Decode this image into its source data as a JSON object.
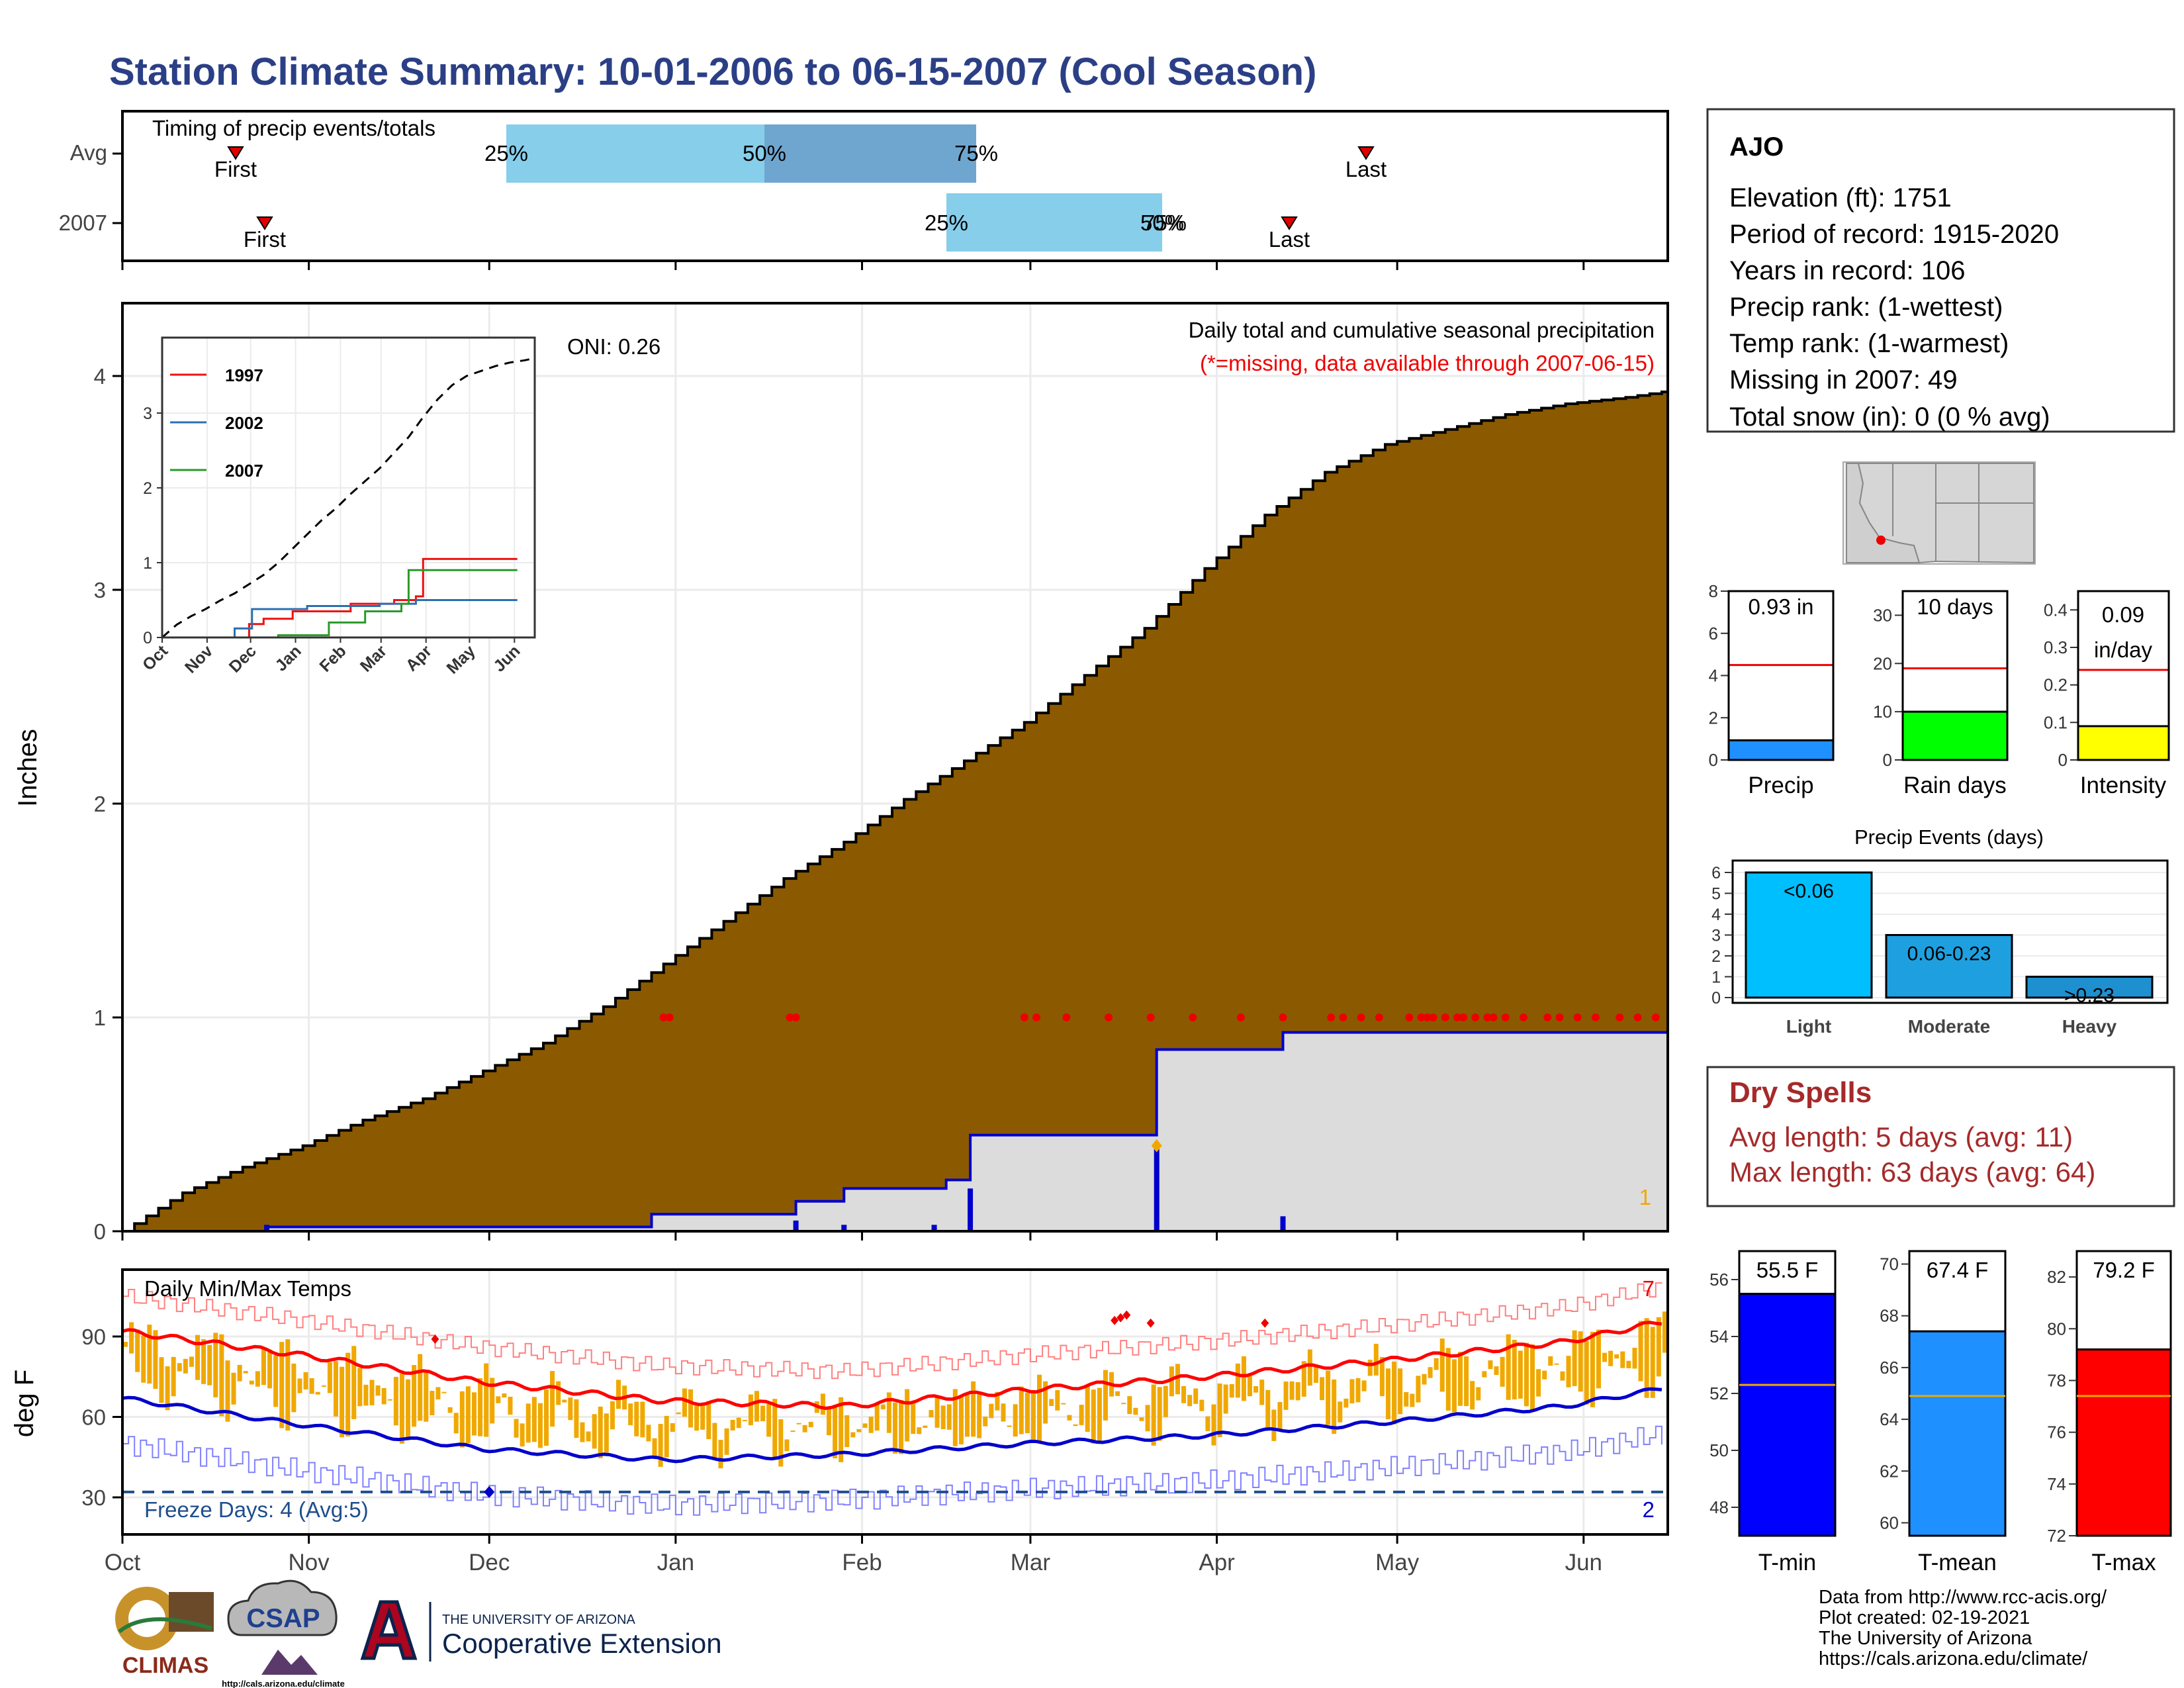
{
  "title": "Station Climate Summary: 10-01-2006 to 06-15-2007 (Cool Season)",
  "timing": {
    "label": "Timing of precip events/totals",
    "rows": [
      {
        "name": "Avg",
        "first_label": "First",
        "last_label": "Last",
        "q25": "25%",
        "q50": "50%",
        "q75": "75%"
      },
      {
        "name": "2007",
        "first_label": "First",
        "last_label": "Last",
        "q25": "25%",
        "q50": "50%",
        "q75": "75%"
      }
    ]
  },
  "station": {
    "name": "AJO",
    "lines": [
      "Elevation (ft): 1751",
      "Period of record: 1915-2020",
      "Years in record: 106",
      "Precip rank:  (1-wettest)",
      "Temp rank:  (1-warmest)",
      "Missing in 2007: 49",
      "Total snow (in): 0 (0 % avg)"
    ]
  },
  "precip_panel": {
    "ylabel": "Inches",
    "oni": "ONI: 0.26",
    "header": "Daily total and cumulative seasonal precipitation",
    "missing_note": "(*=missing, data available through 2007-06-15)",
    "corner_count": "1",
    "inset_legend": [
      "1997",
      "2002",
      "2007"
    ],
    "inset_months": [
      "Oct",
      "Nov",
      "Dec",
      "Jan",
      "Feb",
      "Mar",
      "Apr",
      "May",
      "Jun"
    ]
  },
  "temp_panel": {
    "ylabel": "deg F",
    "label": "Daily Min/Max Temps",
    "freeze": "Freeze Days: 4 (Avg:5)",
    "max_count": "7",
    "min_count": "2"
  },
  "months": [
    "Oct",
    "Nov",
    "Dec",
    "Jan",
    "Feb",
    "Mar",
    "Apr",
    "May",
    "Jun"
  ],
  "mini_precip": {
    "value_label": "0.93 in",
    "name": "Precip"
  },
  "mini_raindays": {
    "value_label": "10 days",
    "name": "Rain days"
  },
  "mini_intensity": {
    "value_label": "0.09",
    "unit_label": "in/day",
    "name": "Intensity"
  },
  "events": {
    "title": "Precip Events (days)"
  },
  "dry_spells": {
    "title": "Dry Spells",
    "avg": "Avg length: 5 days (avg: 11)",
    "max": "Max length: 63 days (avg: 64)"
  },
  "temps_mini": {
    "names": [
      "T-min",
      "T-mean",
      "T-max"
    ],
    "labels": [
      "55.5 F",
      "67.4 F",
      "79.2 F"
    ]
  },
  "footer": {
    "credits": [
      "Data from http://www.rcc-acis.org/",
      "Plot created: 02-19-2021",
      "The University of Arizona",
      "https://cals.arizona.edu/climate/"
    ],
    "climas": "CLIMAS",
    "csap": "CSAP",
    "csap_url": "http://cals.arizona.edu/climate",
    "ua_small": "THE UNIVERSITY OF ARIZONA",
    "ua_big": "Cooperative Extension"
  },
  "colors": {
    "title": "#2b3f86",
    "cumulative_fill": "#8b5a00",
    "current_fill": "#dcdcdc",
    "current_line": "#0000cc",
    "temp_bar": "#f0a800",
    "avg_max": "#ff0000",
    "avg_min": "#0000cc",
    "quartile_light": "#87ceeb",
    "quartile_dark": "#6ea6cf",
    "dry_spells": "#a52a2a"
  },
  "chart_data": [
    {
      "type": "area",
      "name": "cumulative_precip",
      "ylabel": "Inches",
      "ylim": [
        0,
        4.3
      ],
      "x_days_since_oct1": [
        0,
        10,
        20,
        30,
        40,
        50,
        60,
        70,
        80,
        90,
        100,
        110,
        120,
        130,
        140,
        150,
        160,
        170,
        180,
        190,
        200,
        210,
        220,
        230,
        240,
        250,
        257
      ],
      "avg_cumulative": [
        0.0,
        0.18,
        0.3,
        0.4,
        0.52,
        0.62,
        0.75,
        0.88,
        1.05,
        1.25,
        1.45,
        1.65,
        1.82,
        2.02,
        2.2,
        2.38,
        2.6,
        2.82,
        3.1,
        3.35,
        3.55,
        3.68,
        3.75,
        3.82,
        3.87,
        3.9,
        3.93
      ],
      "current_cumulative_steps": [
        [
          0,
          0.0
        ],
        [
          24,
          0.02
        ],
        [
          88,
          0.08
        ],
        [
          112,
          0.14
        ],
        [
          120,
          0.2
        ],
        [
          137,
          0.24
        ],
        [
          141,
          0.45
        ],
        [
          172,
          0.85
        ],
        [
          193,
          0.93
        ],
        [
          257,
          0.93
        ]
      ],
      "daily_bars": [
        [
          24,
          0.03
        ],
        [
          112,
          0.05
        ],
        [
          120,
          0.03
        ],
        [
          135,
          0.03
        ],
        [
          141,
          0.2
        ],
        [
          172,
          0.4
        ],
        [
          193,
          0.07
        ]
      ],
      "missing_days": [
        90,
        91,
        111,
        112,
        150,
        152,
        157,
        164,
        171,
        178,
        186,
        193,
        201,
        203,
        206,
        209,
        214,
        216,
        217,
        218,
        220,
        222,
        223,
        225,
        227,
        228,
        230,
        233,
        237,
        239,
        242,
        245,
        249,
        252,
        255
      ]
    },
    {
      "type": "line",
      "name": "inset_cumulative",
      "series": [
        {
          "name": "1997",
          "points": [
            [
              0,
              0.0
            ],
            [
              60,
              0.18
            ],
            [
              70,
              0.25
            ],
            [
              90,
              0.35
            ],
            [
              130,
              0.45
            ],
            [
              160,
              0.5
            ],
            [
              175,
              0.55
            ],
            [
              180,
              1.05
            ],
            [
              245,
              1.05
            ]
          ]
        },
        {
          "name": "2002",
          "points": [
            [
              0,
              0.0
            ],
            [
              50,
              0.12
            ],
            [
              62,
              0.38
            ],
            [
              100,
              0.42
            ],
            [
              150,
              0.45
            ],
            [
              175,
              0.5
            ],
            [
              245,
              0.5
            ]
          ]
        },
        {
          "name": "2007",
          "points": [
            [
              0,
              0.0
            ],
            [
              80,
              0.03
            ],
            [
              115,
              0.2
            ],
            [
              140,
              0.35
            ],
            [
              165,
              0.45
            ],
            [
              170,
              0.9
            ],
            [
              245,
              0.9
            ]
          ]
        }
      ],
      "ylim": [
        0,
        3.8
      ]
    },
    {
      "type": "bar",
      "name": "daily_temps",
      "ylabel": "deg F",
      "yticks": [
        30,
        60,
        90
      ],
      "avg_max": [
        [
          0,
          92
        ],
        [
          30,
          83
        ],
        [
          60,
          73
        ],
        [
          90,
          66
        ],
        [
          120,
          64
        ],
        [
          150,
          70
        ],
        [
          180,
          75
        ],
        [
          210,
          81
        ],
        [
          240,
          88
        ],
        [
          257,
          96
        ]
      ],
      "avg_min": [
        [
          0,
          67
        ],
        [
          30,
          57
        ],
        [
          60,
          48
        ],
        [
          90,
          44
        ],
        [
          120,
          46
        ],
        [
          150,
          50
        ],
        [
          180,
          53
        ],
        [
          210,
          58
        ],
        [
          240,
          64
        ],
        [
          257,
          71
        ]
      ],
      "freeze_line": 32
    },
    {
      "type": "bar",
      "name": "precip_mini",
      "categories": [
        "Precip"
      ],
      "values": [
        0.93
      ],
      "avg": 4.5,
      "ylim": [
        0,
        8
      ],
      "yticks": [
        0,
        2,
        4,
        6,
        8
      ]
    },
    {
      "type": "bar",
      "name": "raindays_mini",
      "categories": [
        "Rain days"
      ],
      "values": [
        10
      ],
      "avg": 19,
      "ylim": [
        0,
        35
      ],
      "yticks": [
        0,
        10,
        20,
        30
      ]
    },
    {
      "type": "bar",
      "name": "intensity_mini",
      "categories": [
        "Intensity"
      ],
      "values": [
        0.09
      ],
      "avg": 0.24,
      "ylim": [
        0,
        0.45
      ],
      "yticks": [
        0.0,
        0.1,
        0.2,
        0.3,
        0.4
      ]
    },
    {
      "type": "bar",
      "name": "precip_events",
      "categories": [
        "Light",
        "Moderate",
        "Heavy"
      ],
      "labels": [
        "<0.06",
        "0.06-0.23",
        ">0.23"
      ],
      "values": [
        6,
        3,
        1
      ],
      "ylim": [
        0,
        6
      ],
      "yticks": [
        0,
        1,
        2,
        3,
        4,
        5,
        6
      ]
    },
    {
      "type": "bar",
      "name": "tmin_mini",
      "categories": [
        "T-min"
      ],
      "values": [
        55.5
      ],
      "avg": 52.3,
      "ylim": [
        47,
        57
      ],
      "yticks": [
        48,
        50,
        52,
        54,
        56
      ]
    },
    {
      "type": "bar",
      "name": "tmean_mini",
      "categories": [
        "T-mean"
      ],
      "values": [
        67.4
      ],
      "avg": 64.9,
      "ylim": [
        59.5,
        70.5
      ],
      "yticks": [
        60,
        62,
        64,
        66,
        68,
        70
      ]
    },
    {
      "type": "bar",
      "name": "tmax_mini",
      "categories": [
        "T-max"
      ],
      "values": [
        79.2
      ],
      "avg": 77.4,
      "ylim": [
        72,
        83
      ],
      "yticks": [
        72,
        74,
        76,
        78,
        80,
        82
      ]
    }
  ]
}
